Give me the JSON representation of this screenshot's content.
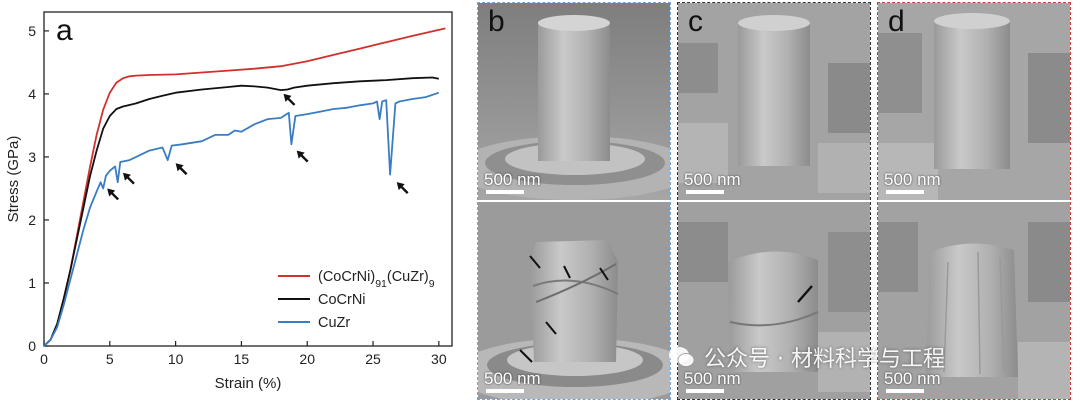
{
  "panel_labels": {
    "a": "a",
    "b": "b",
    "c": "c",
    "d": "d"
  },
  "scale_bar_label": "500 nm",
  "watermark": "公众号 · 材料科学与工程",
  "colors": {
    "cocrni_cuzr": "#d0312d",
    "cocrni": "#111111",
    "cuzr": "#3a7dc2",
    "panel_b_border": "#6fa6d6",
    "panel_c_border": "#333333",
    "panel_d_border": "#d23a3a",
    "arrow": "#111111"
  },
  "chart_data": {
    "type": "line",
    "xlabel": "Strain (%)",
    "ylabel": "Stress (GPa)",
    "xlim": [
      0,
      31
    ],
    "ylim": [
      0,
      5.3
    ],
    "xticks": [
      0,
      5,
      10,
      15,
      20,
      25,
      30
    ],
    "yticks": [
      0,
      1,
      2,
      3,
      4,
      5
    ],
    "legend_position": "bottom-right",
    "series": [
      {
        "name": "(CoCrNi)91(CuZr)9",
        "legend_parts": {
          "pre": "(CoCrNi)",
          "sub1": "91",
          "mid": "(CuZr)",
          "sub2": "9"
        },
        "color": "#d0312d",
        "points": [
          [
            0,
            0
          ],
          [
            0.5,
            0.1
          ],
          [
            1,
            0.35
          ],
          [
            1.5,
            0.75
          ],
          [
            2,
            1.2
          ],
          [
            2.5,
            1.75
          ],
          [
            3,
            2.3
          ],
          [
            3.5,
            2.85
          ],
          [
            4,
            3.35
          ],
          [
            4.5,
            3.75
          ],
          [
            5,
            4.02
          ],
          [
            5.5,
            4.18
          ],
          [
            6,
            4.25
          ],
          [
            6.5,
            4.28
          ],
          [
            7,
            4.29
          ],
          [
            8,
            4.3
          ],
          [
            10,
            4.31
          ],
          [
            12,
            4.34
          ],
          [
            14,
            4.37
          ],
          [
            16,
            4.4
          ],
          [
            18,
            4.44
          ],
          [
            20,
            4.52
          ],
          [
            22,
            4.62
          ],
          [
            24,
            4.72
          ],
          [
            26,
            4.82
          ],
          [
            28,
            4.92
          ],
          [
            30.5,
            5.04
          ]
        ]
      },
      {
        "name": "CoCrNi",
        "color": "#111111",
        "points": [
          [
            0,
            0
          ],
          [
            0.5,
            0.1
          ],
          [
            1,
            0.35
          ],
          [
            1.5,
            0.75
          ],
          [
            2,
            1.2
          ],
          [
            2.5,
            1.7
          ],
          [
            3,
            2.2
          ],
          [
            3.5,
            2.7
          ],
          [
            4,
            3.1
          ],
          [
            4.5,
            3.45
          ],
          [
            5,
            3.65
          ],
          [
            5.5,
            3.76
          ],
          [
            6,
            3.8
          ],
          [
            7,
            3.85
          ],
          [
            8,
            3.92
          ],
          [
            9,
            3.97
          ],
          [
            10,
            4.02
          ],
          [
            12,
            4.07
          ],
          [
            14,
            4.11
          ],
          [
            15,
            4.13
          ],
          [
            16,
            4.12
          ],
          [
            17,
            4.1
          ],
          [
            18,
            4.06
          ],
          [
            18.5,
            4.07
          ],
          [
            19,
            4.1
          ],
          [
            20,
            4.13
          ],
          [
            22,
            4.17
          ],
          [
            24,
            4.2
          ],
          [
            26,
            4.22
          ],
          [
            28,
            4.25
          ],
          [
            29.5,
            4.26
          ],
          [
            30,
            4.24
          ]
        ]
      },
      {
        "name": "CuZr",
        "color": "#3a7dc2",
        "points": [
          [
            0,
            0
          ],
          [
            0.5,
            0.1
          ],
          [
            1,
            0.3
          ],
          [
            1.5,
            0.65
          ],
          [
            2,
            1.05
          ],
          [
            2.5,
            1.45
          ],
          [
            3,
            1.85
          ],
          [
            3.5,
            2.2
          ],
          [
            4,
            2.45
          ],
          [
            4.3,
            2.6
          ],
          [
            4.5,
            2.5
          ],
          [
            4.7,
            2.7
          ],
          [
            5,
            2.78
          ],
          [
            5.4,
            2.85
          ],
          [
            5.6,
            2.6
          ],
          [
            5.8,
            2.92
          ],
          [
            6.5,
            2.95
          ],
          [
            7,
            3.0
          ],
          [
            8,
            3.1
          ],
          [
            9,
            3.15
          ],
          [
            9.4,
            2.95
          ],
          [
            9.7,
            3.18
          ],
          [
            10.5,
            3.2
          ],
          [
            12,
            3.25
          ],
          [
            13,
            3.35
          ],
          [
            14,
            3.35
          ],
          [
            14.5,
            3.42
          ],
          [
            15,
            3.4
          ],
          [
            16,
            3.52
          ],
          [
            17,
            3.6
          ],
          [
            18,
            3.62
          ],
          [
            18.6,
            3.7
          ],
          [
            18.8,
            3.2
          ],
          [
            19.1,
            3.65
          ],
          [
            20,
            3.68
          ],
          [
            21,
            3.72
          ],
          [
            22,
            3.76
          ],
          [
            23,
            3.78
          ],
          [
            24,
            3.82
          ],
          [
            25,
            3.85
          ],
          [
            25.3,
            3.88
          ],
          [
            25.5,
            3.6
          ],
          [
            25.7,
            3.88
          ],
          [
            26,
            3.9
          ],
          [
            26.3,
            2.72
          ],
          [
            26.7,
            3.85
          ],
          [
            27,
            3.88
          ],
          [
            28,
            3.92
          ],
          [
            29,
            3.95
          ],
          [
            30,
            4.02
          ]
        ]
      }
    ],
    "annotations": [
      {
        "type": "arrow",
        "x": 18.2,
        "y": 4.0,
        "series": "CoCrNi"
      },
      {
        "type": "arrow",
        "x": 4.8,
        "y": 2.5,
        "series": "CuZr"
      },
      {
        "type": "arrow",
        "x": 6.0,
        "y": 2.75,
        "series": "CuZr"
      },
      {
        "type": "arrow",
        "x": 10.0,
        "y": 2.9,
        "series": "CuZr"
      },
      {
        "type": "arrow",
        "x": 19.2,
        "y": 3.1,
        "series": "CuZr"
      },
      {
        "type": "arrow",
        "x": 26.8,
        "y": 2.6,
        "series": "CuZr"
      }
    ]
  }
}
